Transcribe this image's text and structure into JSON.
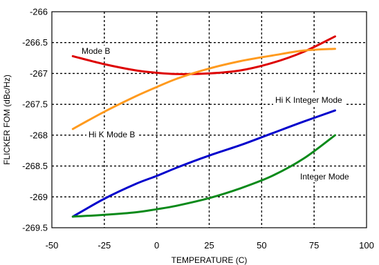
{
  "chart_data": {
    "type": "line",
    "title": "",
    "xlabel": "TEMPERATURE (C)",
    "ylabel": "FLICKER FOM (dBc/Hz)",
    "xlim": [
      -50,
      100
    ],
    "ylim": [
      -269.5,
      -266
    ],
    "xticks": [
      -50,
      -25,
      0,
      25,
      50,
      75,
      100
    ],
    "xtick_labels": [
      "-50",
      "-25",
      "0",
      "25",
      "50",
      "75",
      "100"
    ],
    "yticks": [
      -266,
      -266.5,
      -267,
      -267.5,
      -268,
      -268.5,
      -269,
      -269.5
    ],
    "ytick_labels": [
      "-266",
      "-266.5",
      "-267",
      "-267.5",
      "-268",
      "-268.5",
      "-269",
      "-269.5"
    ],
    "grid": true,
    "series": [
      {
        "name": "Mode B",
        "color": "#dd0000",
        "x": [
          -40,
          -25,
          -10,
          0,
          10,
          25,
          40,
          55,
          70,
          85
        ],
        "y": [
          -266.72,
          -266.85,
          -266.95,
          -266.99,
          -267.01,
          -267.0,
          -266.95,
          -266.83,
          -266.65,
          -266.4
        ]
      },
      {
        "name": "Hi K Mode B",
        "color": "#ff9a1e",
        "x": [
          -40,
          -25,
          -10,
          0,
          10,
          25,
          40,
          55,
          70,
          85
        ],
        "y": [
          -267.9,
          -267.62,
          -267.37,
          -267.22,
          -267.08,
          -266.92,
          -266.8,
          -266.71,
          -266.63,
          -266.6
        ]
      },
      {
        "name": "Hi K Integer Mode",
        "color": "#0000cc",
        "x": [
          -40,
          -25,
          -10,
          0,
          10,
          25,
          40,
          55,
          70,
          85
        ],
        "y": [
          -269.32,
          -269.03,
          -268.79,
          -268.66,
          -268.52,
          -268.33,
          -268.16,
          -267.97,
          -267.78,
          -267.6
        ]
      },
      {
        "name": "Integer Mode",
        "color": "#0a8a1a",
        "x": [
          -40,
          -25,
          -10,
          0,
          10,
          25,
          40,
          55,
          70,
          85
        ],
        "y": [
          -269.32,
          -269.29,
          -269.25,
          -269.2,
          -269.14,
          -269.02,
          -268.86,
          -268.66,
          -268.38,
          -268.0
        ]
      }
    ],
    "annotations": [
      {
        "text": "Mode B",
        "series": "Mode B"
      },
      {
        "text": "Hi K Mode B",
        "series": "Hi K Mode B"
      },
      {
        "text": "Hi K Integer Mode",
        "series": "Hi K Integer Mode"
      },
      {
        "text": "Integer Mode",
        "series": "Integer Mode"
      }
    ]
  }
}
